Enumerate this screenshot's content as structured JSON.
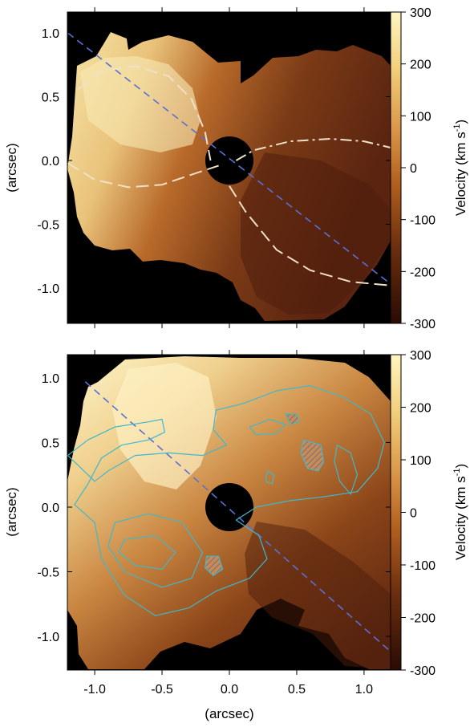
{
  "chart_data": [
    {
      "type": "heatmap",
      "panel": "top",
      "xlim": [
        -1.2,
        1.2
      ],
      "ylim": [
        -1.22,
        1.22
      ],
      "yticks": [
        1.0,
        0.5,
        0.0,
        -0.5,
        -1.0
      ],
      "ytick_labels": [
        "1.0",
        "0.5",
        "0.0",
        "-0.5",
        "-1.0"
      ],
      "xticks": [
        -1.0,
        -0.5,
        0.0,
        0.5,
        1.0
      ],
      "ylabel": "(arcsec)",
      "colorbar": {
        "label": "Velocity (km s-1)",
        "label_main": "Velocity (km s",
        "label_sup": "-1",
        "label_close": ")",
        "range": [
          -300,
          300
        ],
        "ticks": [
          300,
          200,
          100,
          0,
          -100,
          -200,
          -300
        ],
        "tick_labels": [
          "300",
          "200",
          "100",
          "0",
          "-100",
          "-200",
          "-300"
        ]
      },
      "masked_center": {
        "x": 0.0,
        "y": 0.0,
        "radius": 0.19
      },
      "dashed_axis_line": {
        "from": [
          -1.2,
          1.0
        ],
        "to": [
          1.2,
          -0.97
        ],
        "color": "#5a6fd6"
      },
      "curves": [
        {
          "kind": "dashed",
          "color": "#f0e0c8",
          "points": [
            [
              -1.12,
              0.56
            ],
            [
              -0.95,
              0.7
            ],
            [
              -0.7,
              0.74
            ],
            [
              -0.45,
              0.66
            ],
            [
              -0.28,
              0.48
            ],
            [
              -0.18,
              0.22
            ],
            [
              -0.14,
              0.0
            ]
          ]
        },
        {
          "kind": "dash-dot",
          "color": "#f0e0c8",
          "points": [
            [
              0.05,
              0.0
            ],
            [
              0.18,
              0.08
            ],
            [
              0.45,
              0.15
            ],
            [
              0.75,
              0.17
            ],
            [
              1.0,
              0.15
            ],
            [
              1.2,
              0.1
            ]
          ]
        },
        {
          "kind": "dashed",
          "color": "#f0e0c8",
          "points": [
            [
              -1.2,
              -0.02
            ],
            [
              -1.0,
              -0.15
            ],
            [
              -0.75,
              -0.21
            ],
            [
              -0.5,
              -0.19
            ],
            [
              -0.25,
              -0.1
            ],
            [
              -0.08,
              -0.04
            ]
          ]
        },
        {
          "kind": "dashed",
          "color": "#f0e0c8",
          "points": [
            [
              0.0,
              -0.2
            ],
            [
              0.12,
              -0.4
            ],
            [
              0.35,
              -0.7
            ],
            [
              0.6,
              -0.86
            ],
            [
              0.9,
              -0.95
            ],
            [
              1.2,
              -0.98
            ]
          ]
        }
      ]
    },
    {
      "type": "heatmap",
      "panel": "bottom",
      "xlim": [
        -1.2,
        1.2
      ],
      "ylim": [
        -1.22,
        1.22
      ],
      "yticks": [
        1.0,
        0.5,
        0.0,
        -0.5,
        -1.0
      ],
      "ytick_labels": [
        "1.0",
        "0.5",
        "0.0",
        "-0.5",
        "-1.0"
      ],
      "xticks": [
        -1.0,
        -0.5,
        0.0,
        0.5,
        1.0
      ],
      "xtick_labels": [
        "-1.0",
        "-0.5",
        "0.0",
        "0.5",
        "1.0"
      ],
      "xlabel": "(arcsec)",
      "ylabel": "(arcsec)",
      "colorbar": {
        "label": "Velocity (km s-1)",
        "label_main": "Velocity (km s",
        "label_sup": "-1",
        "label_close": ")",
        "range": [
          -300,
          300
        ],
        "ticks": [
          300,
          200,
          100,
          0,
          -100,
          -200,
          -300
        ],
        "tick_labels": [
          "300",
          "200",
          "100",
          "0",
          "-100",
          "-200",
          "-300"
        ]
      },
      "masked_center": {
        "x": 0.0,
        "y": 0.0,
        "radius": 0.19
      },
      "dashed_axis_line": {
        "from": [
          -1.07,
          0.97
        ],
        "to": [
          1.2,
          -1.12
        ],
        "color": "#5a6fd6"
      },
      "contour_color": "#3fb8cc",
      "contours": [
        [
          [
            -1.2,
            0.4
          ],
          [
            -1.05,
            0.52
          ],
          [
            -0.85,
            0.62
          ],
          [
            -0.6,
            0.66
          ],
          [
            -0.5,
            0.68
          ],
          [
            -0.48,
            0.58
          ],
          [
            -0.6,
            0.52
          ],
          [
            -0.8,
            0.48
          ],
          [
            -0.95,
            0.38
          ],
          [
            -1.05,
            0.18
          ],
          [
            -1.15,
            0.02
          ],
          [
            -1.0,
            -0.12
          ],
          [
            -0.95,
            -0.4
          ],
          [
            -0.78,
            -0.68
          ],
          [
            -0.55,
            -0.84
          ],
          [
            -0.3,
            -0.78
          ],
          [
            -0.1,
            -0.65
          ],
          [
            0.15,
            -0.55
          ],
          [
            0.28,
            -0.4
          ],
          [
            0.22,
            -0.22
          ],
          [
            0.05,
            -0.1
          ],
          [
            0.2,
            0.0
          ],
          [
            0.45,
            0.05
          ],
          [
            0.7,
            0.08
          ],
          [
            0.95,
            0.12
          ],
          [
            1.1,
            0.3
          ],
          [
            1.15,
            0.5
          ],
          [
            1.05,
            0.72
          ],
          [
            0.85,
            0.85
          ],
          [
            0.6,
            0.94
          ],
          [
            0.35,
            0.9
          ],
          [
            0.1,
            0.8
          ],
          [
            -0.1,
            0.75
          ],
          [
            -0.12,
            0.6
          ],
          [
            -0.02,
            0.48
          ],
          [
            -0.2,
            0.4
          ],
          [
            -0.45,
            0.42
          ],
          [
            -0.7,
            0.4
          ],
          [
            -0.9,
            0.28
          ],
          [
            -1.0,
            0.2
          ]
        ],
        [
          [
            -0.85,
            -0.12
          ],
          [
            -0.6,
            -0.05
          ],
          [
            -0.35,
            -0.12
          ],
          [
            -0.2,
            -0.35
          ],
          [
            -0.28,
            -0.55
          ],
          [
            -0.5,
            -0.62
          ],
          [
            -0.78,
            -0.5
          ],
          [
            -0.9,
            -0.3
          ]
        ],
        [
          [
            -0.78,
            -0.25
          ],
          [
            -0.55,
            -0.22
          ],
          [
            -0.4,
            -0.35
          ],
          [
            -0.5,
            -0.48
          ],
          [
            -0.7,
            -0.45
          ],
          [
            -0.82,
            -0.35
          ]
        ],
        [
          [
            0.15,
            0.62
          ],
          [
            0.3,
            0.68
          ],
          [
            0.42,
            0.64
          ],
          [
            0.35,
            0.57
          ],
          [
            0.2,
            0.56
          ]
        ],
        [
          [
            0.8,
            0.48
          ],
          [
            0.9,
            0.42
          ],
          [
            0.95,
            0.25
          ],
          [
            0.9,
            0.1
          ],
          [
            0.82,
            0.2
          ],
          [
            0.78,
            0.35
          ]
        ],
        [
          [
            0.28,
            0.28
          ],
          [
            0.33,
            0.25
          ],
          [
            0.32,
            0.18
          ],
          [
            0.27,
            0.2
          ]
        ]
      ],
      "hatched_regions": [
        [
          [
            0.42,
            0.72
          ],
          [
            0.5,
            0.72
          ],
          [
            0.52,
            0.66
          ],
          [
            0.45,
            0.64
          ]
        ],
        [
          [
            0.55,
            0.52
          ],
          [
            0.68,
            0.48
          ],
          [
            0.7,
            0.35
          ],
          [
            0.66,
            0.28
          ],
          [
            0.58,
            0.3
          ],
          [
            0.53,
            0.42
          ]
        ],
        [
          [
            -0.17,
            -0.38
          ],
          [
            -0.08,
            -0.38
          ],
          [
            -0.05,
            -0.48
          ],
          [
            -0.12,
            -0.53
          ],
          [
            -0.18,
            -0.47
          ]
        ]
      ]
    }
  ]
}
